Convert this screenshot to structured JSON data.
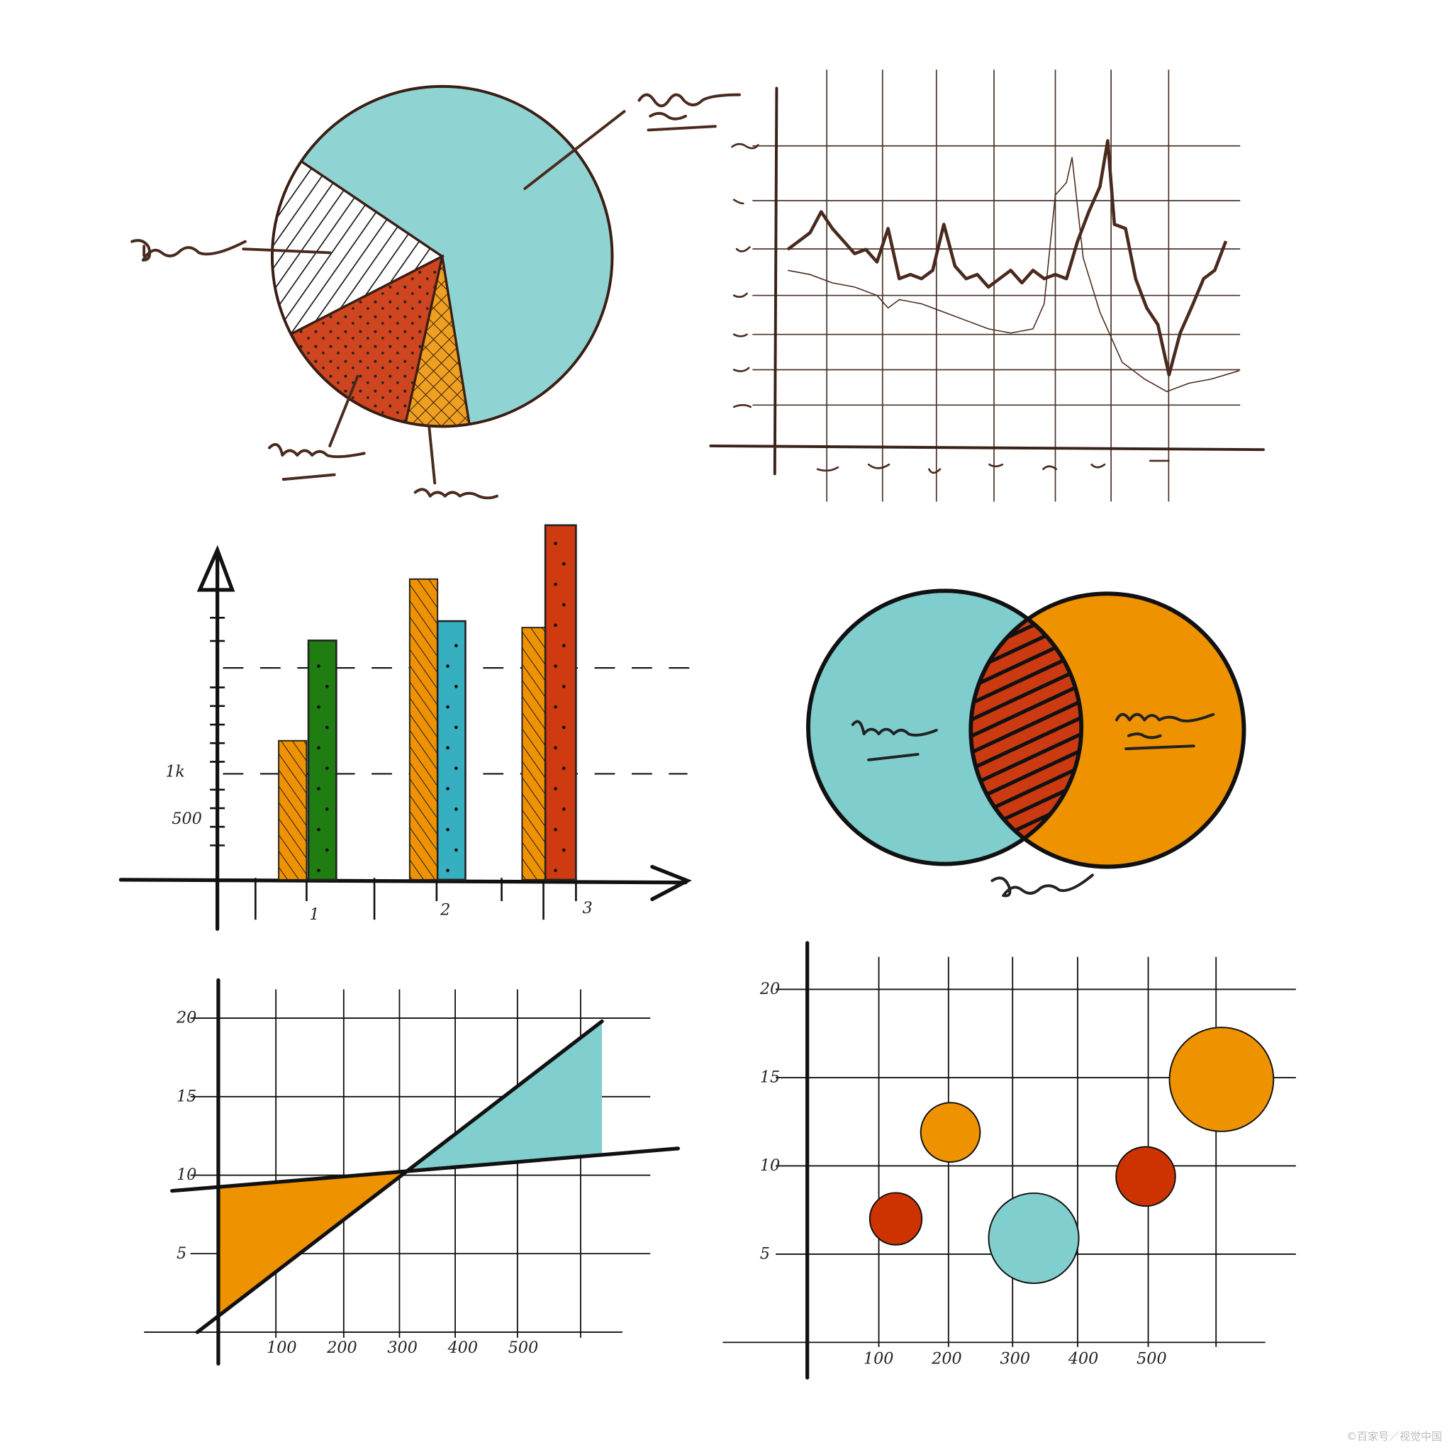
{
  "watermark": "©百家号／视觉中国",
  "colors": {
    "cyan": "#8fd3d3",
    "teal": "#36b0c0",
    "orange": "#ef9200",
    "red": "#cf4520",
    "green": "#1f7d12",
    "ink": "#4a2a1e"
  },
  "chart_data": [
    {
      "type": "pie",
      "slices": [
        {
          "fill": "cyan",
          "value": 63
        },
        {
          "fill": "orange-crosshatch",
          "value": 6
        },
        {
          "fill": "red-dotted",
          "value": 14
        },
        {
          "fill": "white-hatched",
          "value": 17
        }
      ],
      "labels": "handwritten scribbles (illegible)"
    },
    {
      "type": "line",
      "grid": true,
      "series": [
        {
          "style": "thick",
          "points": [
            [
              0,
              4.7
            ],
            [
              1,
              4.9
            ],
            [
              2,
              5.1
            ],
            [
              3,
              5.6
            ],
            [
              4,
              5.2
            ],
            [
              5,
              4.9
            ],
            [
              6,
              4.6
            ],
            [
              7,
              4.7
            ],
            [
              8,
              4.4
            ],
            [
              9,
              5.2
            ],
            [
              10,
              4.0
            ],
            [
              11,
              4.1
            ],
            [
              12,
              4.0
            ],
            [
              13,
              4.2
            ],
            [
              14,
              5.3
            ],
            [
              15,
              4.3
            ],
            [
              16,
              4.0
            ],
            [
              17,
              4.1
            ],
            [
              18,
              3.8
            ],
            [
              19,
              4.0
            ],
            [
              20,
              4.2
            ],
            [
              21,
              3.9
            ],
            [
              22,
              4.2
            ],
            [
              23,
              4.0
            ],
            [
              24,
              4.1
            ],
            [
              25,
              4.0
            ],
            [
              26,
              4.9
            ],
            [
              27,
              5.6
            ],
            [
              28,
              6.2
            ],
            [
              28.7,
              7.3
            ],
            [
              29.3,
              5.3
            ],
            [
              30.3,
              5.2
            ],
            [
              31.2,
              4.0
            ],
            [
              32.2,
              3.3
            ],
            [
              33.2,
              2.9
            ],
            [
              34.2,
              1.7
            ],
            [
              35.2,
              2.7
            ],
            [
              36.2,
              3.3
            ],
            [
              37.3,
              4.0
            ],
            [
              38.3,
              4.2
            ],
            [
              39.3,
              4.9
            ]
          ]
        },
        {
          "style": "thin",
          "points": [
            [
              0,
              4.2
            ],
            [
              2,
              4.1
            ],
            [
              4,
              3.9
            ],
            [
              6,
              3.8
            ],
            [
              8,
              3.6
            ],
            [
              9,
              3.3
            ],
            [
              10,
              3.5
            ],
            [
              12,
              3.4
            ],
            [
              14,
              3.2
            ],
            [
              16,
              3.0
            ],
            [
              18,
              2.8
            ],
            [
              20,
              2.7
            ],
            [
              22,
              2.8
            ],
            [
              23,
              3.4
            ],
            [
              24,
              6.0
            ],
            [
              25,
              6.3
            ],
            [
              25.5,
              6.9
            ],
            [
              26.5,
              4.5
            ],
            [
              28,
              3.2
            ],
            [
              30,
              2.0
            ],
            [
              32,
              1.6
            ],
            [
              34,
              1.3
            ],
            [
              36,
              1.5
            ],
            [
              38,
              1.6
            ],
            [
              40.5,
              1.8
            ]
          ]
        }
      ],
      "labels": "handwritten scribbles (illegible)"
    },
    {
      "type": "bar",
      "categories": [
        "1",
        "2",
        "3"
      ],
      "yticks": [
        "500",
        "1k"
      ],
      "series": [
        {
          "fill": "orange-hatched",
          "values": [
            1290,
            2790,
            2340
          ]
        },
        {
          "fill": "green/teal/red dotted",
          "colors": [
            "#1f7d12",
            "#36b0c0",
            "#cf3a10"
          ],
          "values": [
            2220,
            2400,
            3290
          ]
        }
      ],
      "reference_lines": [
        1000,
        2000
      ]
    },
    {
      "type": "venn",
      "sets": [
        {
          "fill": "cyan"
        },
        {
          "fill": "orange"
        }
      ],
      "intersection_fill": "red-hatched",
      "labels": "handwritten scribbles (illegible)"
    },
    {
      "type": "area",
      "xticks": [
        "100",
        "200",
        "300",
        "400",
        "500"
      ],
      "yticks": [
        "5",
        "10",
        "15",
        "20"
      ],
      "xlim": [
        0,
        650
      ],
      "ylim": [
        0,
        20
      ],
      "grid": true,
      "series": [
        {
          "name": "",
          "points": [
            [
              -30,
              0
            ],
            [
              640,
              19.8
            ]
          ]
        },
        {
          "name": "",
          "points": [
            [
              -72,
              9.0
            ],
            [
              766,
              11.7
            ]
          ]
        }
      ],
      "fills": [
        {
          "color": "orange",
          "between": "x<300"
        },
        {
          "color": "cyan",
          "between": "x>300"
        }
      ]
    },
    {
      "type": "scatter",
      "bubble": true,
      "xticks": [
        "100",
        "200",
        "300",
        "400",
        "500"
      ],
      "yticks": [
        "5",
        "10",
        "15",
        "20"
      ],
      "xlim": [
        0,
        700
      ],
      "ylim": [
        0,
        20
      ],
      "grid": true,
      "points": [
        {
          "x": 131,
          "y": 7.0,
          "size": 1.0,
          "color": "#cc3300"
        },
        {
          "x": 211,
          "y": 11.9,
          "size": 1.3,
          "color": "#ef9200"
        },
        {
          "x": 333,
          "y": 5.9,
          "size": 3.0,
          "color": "#80cece"
        },
        {
          "x": 497,
          "y": 9.4,
          "size": 1.3,
          "color": "#cc3300"
        },
        {
          "x": 608,
          "y": 14.9,
          "size": 4.0,
          "color": "#ef9200"
        }
      ]
    }
  ]
}
